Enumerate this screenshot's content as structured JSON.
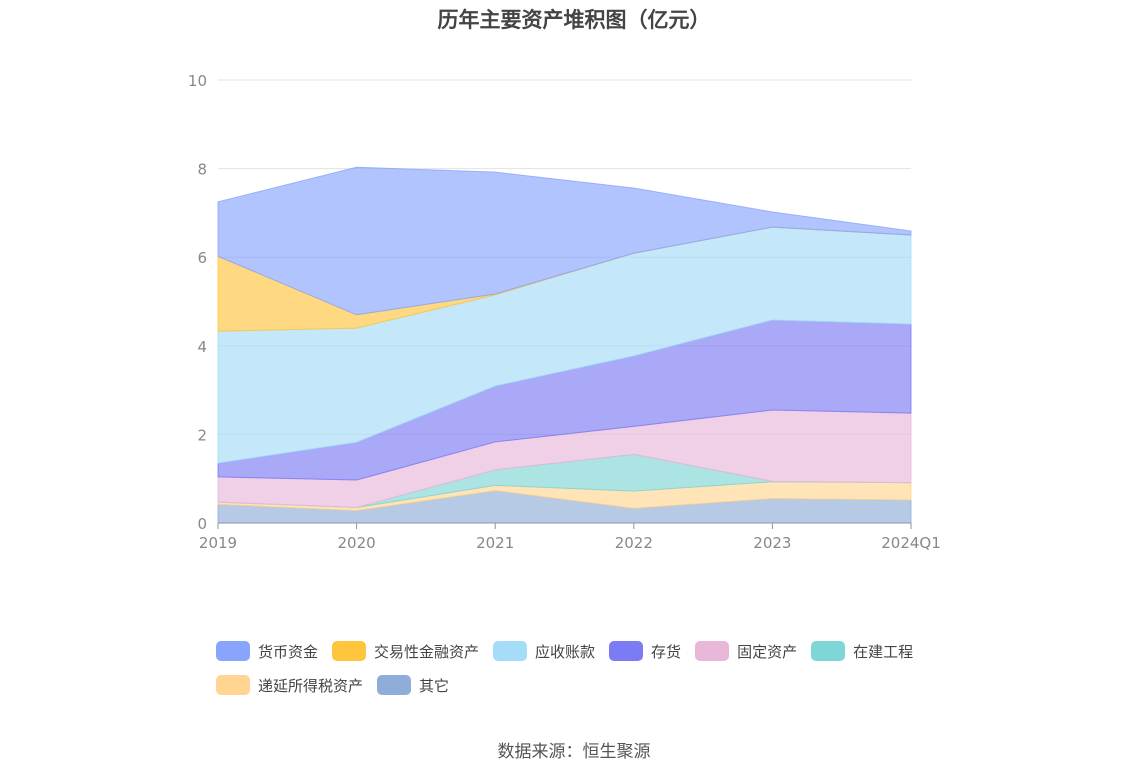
{
  "chart_data": {
    "type": "area",
    "stacked": true,
    "title": "历年主要资产堆积图（亿元）",
    "categories": [
      "2019",
      "2020",
      "2021",
      "2022",
      "2023",
      "2024Q1"
    ],
    "ylim": [
      0,
      10
    ],
    "yticks": [
      0,
      2,
      4,
      6,
      8,
      10
    ],
    "grid": true,
    "legend_position": "bottom",
    "series": [
      {
        "name": "货币资金",
        "color": "#88a4fd",
        "values": [
          1.23,
          3.33,
          2.75,
          1.47,
          0.34,
          0.09
        ]
      },
      {
        "name": "交易性金融资产",
        "color": "#ffc53d",
        "values": [
          1.69,
          0.3,
          0.02,
          0,
          0,
          0
        ]
      },
      {
        "name": "应收账款",
        "color": "#a5dcf8",
        "values": [
          2.98,
          2.58,
          2.06,
          2.32,
          2.1,
          2.01
        ]
      },
      {
        "name": "存货",
        "color": "#7b7bf5",
        "values": [
          0.31,
          0.85,
          1.26,
          1.59,
          2.03,
          2.01
        ]
      },
      {
        "name": "固定资产",
        "color": "#e8b7d9",
        "values": [
          0.57,
          0.62,
          0.63,
          0.63,
          1.61,
          1.57
        ]
      },
      {
        "name": "在建工程",
        "color": "#7fd6d6",
        "values": [
          0,
          0,
          0.35,
          0.83,
          0.01,
          0
        ]
      },
      {
        "name": "递延所得税资产",
        "color": "#ffd591",
        "values": [
          0.05,
          0.07,
          0.12,
          0.39,
          0.38,
          0.39
        ]
      },
      {
        "name": "其它",
        "color": "#8fadd9",
        "values": [
          0.42,
          0.28,
          0.73,
          0.33,
          0.55,
          0.52
        ]
      }
    ]
  },
  "source": "数据来源：恒生聚源"
}
